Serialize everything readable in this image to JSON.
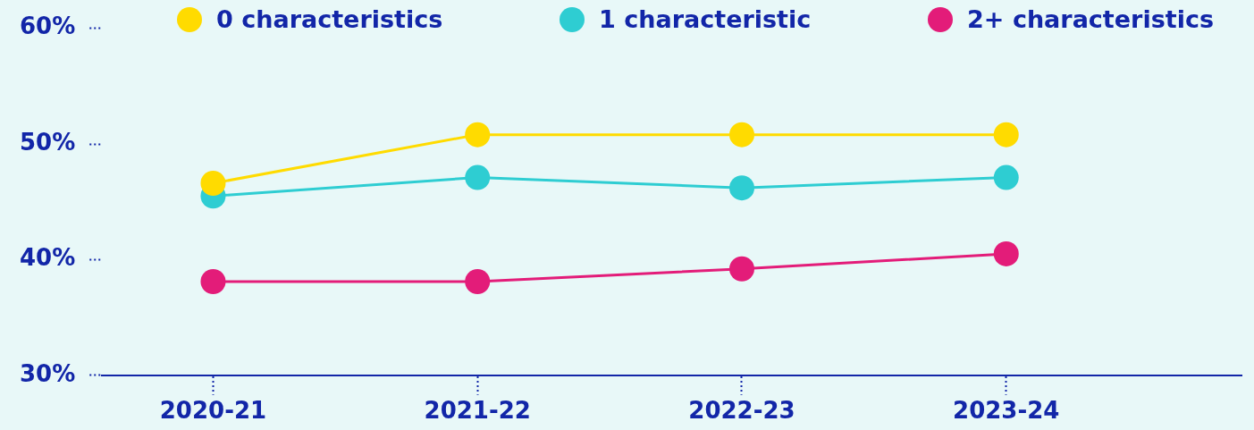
{
  "chart_data": {
    "type": "line",
    "categories": [
      "2020-21",
      "2021-22",
      "2022-23",
      "2023-24"
    ],
    "series": [
      {
        "name": "0 characteristics",
        "color": "#ffdb00",
        "values": [
          46.6,
          50.8,
          50.8,
          50.8
        ]
      },
      {
        "name": "1 characteristic",
        "color": "#2ecdd2",
        "values": [
          45.5,
          47.1,
          46.2,
          47.1
        ]
      },
      {
        "name": "2+ characteristics",
        "color": "#e31c79",
        "values": [
          38.1,
          38.1,
          39.2,
          40.5
        ]
      }
    ],
    "ylim": [
      30,
      60
    ],
    "yticks": [
      {
        "value": 30,
        "label": "30%"
      },
      {
        "value": 40,
        "label": "40%"
      },
      {
        "value": 50,
        "label": "50%"
      },
      {
        "value": 60,
        "label": "60%"
      }
    ],
    "legend": "top",
    "marker": "circle",
    "line_style": "solid",
    "grid": false
  }
}
